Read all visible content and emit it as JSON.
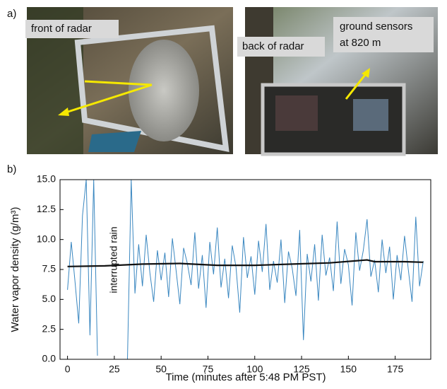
{
  "panels": {
    "a": "a)",
    "b": "b)"
  },
  "photo_labels": {
    "front": "front of radar",
    "back": "back of radar",
    "sensors_line1": "ground sensors",
    "sensors_line2": "at 820 m"
  },
  "chart_data": {
    "type": "line",
    "xlabel": "Time (minutes after 5:48 PM PST)",
    "ylabel": "Water vapor density (g/m³)",
    "annotation": "interrupted rain",
    "xlim": [
      -4,
      194
    ],
    "ylim": [
      0,
      15
    ],
    "xticks": [
      0,
      25,
      50,
      75,
      100,
      125,
      150,
      175
    ],
    "yticks": [
      {
        "value": 0,
        "label": "0.0"
      },
      2.5,
      {
        "value": 5,
        "label": "5.0"
      },
      7.5,
      {
        "value": 10,
        "label": "10.0"
      },
      12.5,
      {
        "value": 15,
        "label": "15.0"
      }
    ],
    "series": [
      {
        "color": "#3a87c0",
        "x": [
          0,
          2,
          4,
          6,
          8,
          10,
          12,
          14,
          16,
          18,
          20,
          22,
          24,
          26,
          28,
          30,
          32,
          34,
          36,
          38,
          40,
          42,
          44,
          46,
          48,
          50,
          52,
          54,
          56,
          58,
          60,
          62,
          64,
          66,
          68,
          70,
          72,
          74,
          76,
          78,
          80,
          82,
          84,
          86,
          88,
          90,
          92,
          94,
          96,
          98,
          100,
          102,
          104,
          106,
          108,
          110,
          112,
          114,
          116,
          118,
          120,
          122,
          124,
          126,
          128,
          130,
          132,
          134,
          136,
          138,
          140,
          142,
          144,
          146,
          148,
          150,
          152,
          154,
          156,
          158,
          160,
          162,
          164,
          166,
          168,
          170,
          172,
          174,
          176,
          178,
          180,
          182,
          184,
          186,
          188,
          190
        ],
        "values": [
          5.8,
          9.8,
          6.5,
          3.0,
          12.0,
          15.0,
          2.0,
          15.0,
          0.3,
          null,
          null,
          null,
          null,
          null,
          null,
          null,
          0.0,
          15.0,
          5.5,
          9.6,
          6.1,
          10.4,
          7.2,
          4.8,
          9.1,
          6.6,
          8.9,
          5.2,
          10.1,
          7.4,
          4.6,
          9.3,
          8.0,
          6.2,
          10.6,
          5.9,
          8.7,
          4.3,
          9.8,
          7.1,
          11.0,
          6.0,
          8.4,
          5.1,
          9.5,
          7.7,
          3.9,
          10.2,
          6.8,
          8.6,
          5.4,
          9.9,
          7.3,
          11.3,
          5.8,
          8.2,
          6.4,
          10.0,
          4.7,
          9.0,
          7.6,
          5.3,
          10.8,
          1.6,
          8.8,
          6.5,
          9.6,
          4.9,
          10.4,
          7.0,
          8.5,
          5.7,
          11.5,
          6.3,
          9.2,
          7.9,
          4.5,
          10.6,
          7.4,
          9.1,
          11.7,
          6.9,
          8.3,
          5.6,
          10.0,
          7.2,
          9.4,
          5.0,
          8.7,
          6.6,
          10.3,
          7.5,
          4.8,
          11.9,
          6.1,
          8.2
        ]
      },
      {
        "color": "#111111",
        "x": [
          0,
          20,
          40,
          60,
          80,
          100,
          120,
          140,
          160,
          164,
          180,
          190
        ],
        "values": [
          7.75,
          7.8,
          7.95,
          8.0,
          7.85,
          7.85,
          7.95,
          8.05,
          8.3,
          8.15,
          8.15,
          8.1
        ]
      }
    ]
  }
}
